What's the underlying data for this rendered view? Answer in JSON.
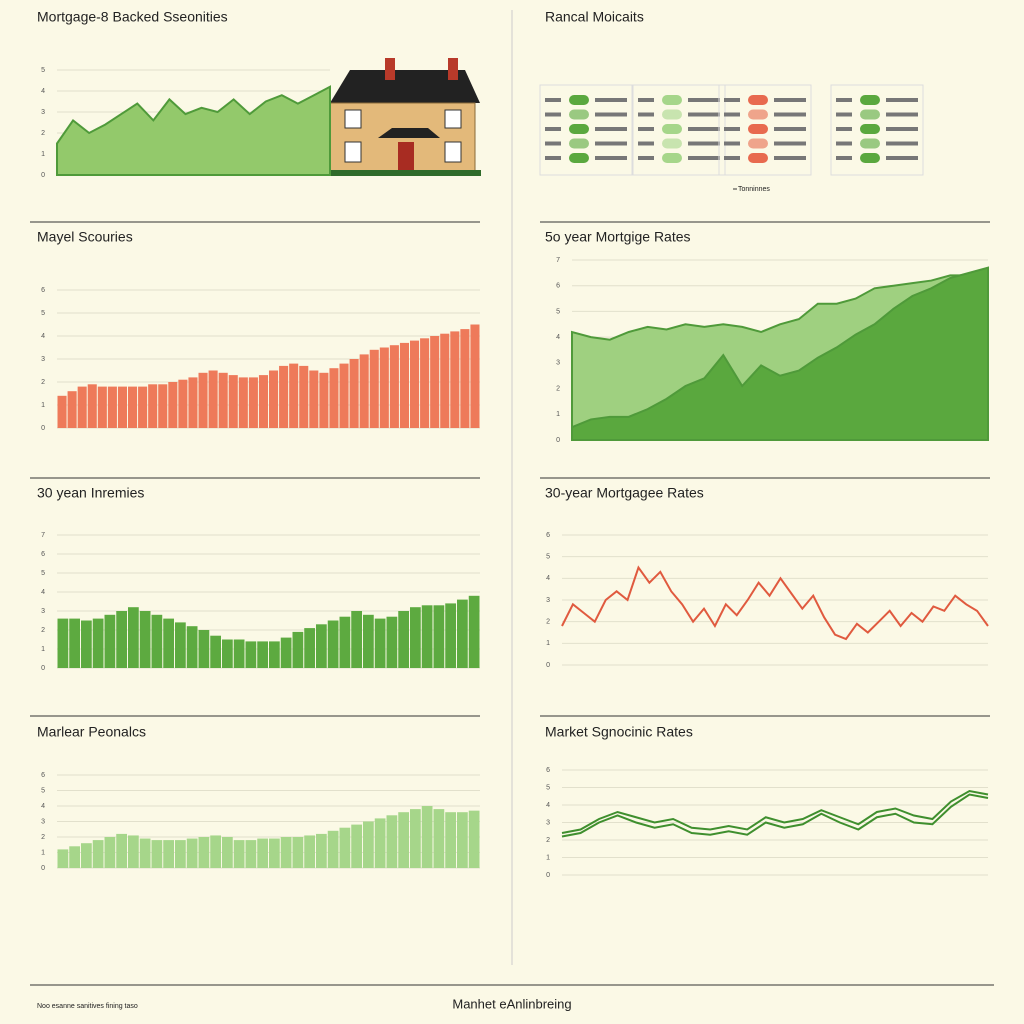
{
  "chart_data": [
    {
      "type": "area",
      "title": "Mortgage-8 Backed Sseonities",
      "ylim": [
        0,
        5
      ],
      "yticks": [
        0,
        1,
        2,
        3,
        4,
        5
      ],
      "series": [
        {
          "color": "#93c96b",
          "values": [
            1.5,
            2.6,
            2.0,
            2.4,
            2.9,
            3.4,
            2.6,
            3.6,
            2.9,
            3.2,
            3.0,
            3.6,
            2.9,
            3.5,
            3.8,
            3.4,
            3.8,
            4.2
          ]
        }
      ]
    },
    {
      "type": "bar",
      "title": "Mayel Scouries",
      "ylim": [
        0,
        6
      ],
      "yticks": [
        0,
        1,
        2,
        3,
        4,
        5,
        6
      ],
      "series": [
        {
          "color": "#ee7a5a",
          "values": [
            1.4,
            1.6,
            1.8,
            1.9,
            1.8,
            1.8,
            1.8,
            1.8,
            1.8,
            1.9,
            1.9,
            2.0,
            2.1,
            2.2,
            2.4,
            2.5,
            2.4,
            2.3,
            2.2,
            2.2,
            2.3,
            2.5,
            2.7,
            2.8,
            2.7,
            2.5,
            2.4,
            2.6,
            2.8,
            3.0,
            3.2,
            3.4,
            3.5,
            3.6,
            3.7,
            3.8,
            3.9,
            4.0,
            4.1,
            4.2,
            4.3,
            4.5
          ]
        }
      ]
    },
    {
      "type": "area",
      "title": "5o year Mortgige Rates",
      "ylim": [
        0,
        7
      ],
      "yticks": [
        0,
        1,
        2,
        3,
        4,
        5,
        6,
        7
      ],
      "series": [
        {
          "color": "#9fd080",
          "values": [
            4.2,
            4.0,
            3.9,
            4.2,
            4.4,
            4.3,
            4.5,
            4.4,
            4.5,
            4.4,
            4.2,
            4.5,
            4.7,
            5.3,
            5.3,
            5.5,
            5.9,
            6.0,
            6.1,
            6.2,
            6.4,
            6.4,
            6.3
          ]
        },
        {
          "color": "#5aa83e",
          "values": [
            0.5,
            0.8,
            0.9,
            0.9,
            1.2,
            1.6,
            2.1,
            2.4,
            3.3,
            2.1,
            2.9,
            2.5,
            2.7,
            3.2,
            3.6,
            4.1,
            4.5,
            5.1,
            5.6,
            5.9,
            6.3,
            6.5,
            6.7
          ]
        }
      ]
    },
    {
      "type": "bar",
      "title": "30 yean Inremies",
      "ylim": [
        0,
        7
      ],
      "yticks": [
        0,
        1,
        2,
        3,
        4,
        5,
        6,
        7
      ],
      "series": [
        {
          "color": "#5daa40",
          "values": [
            2.6,
            2.6,
            2.5,
            2.6,
            2.8,
            3.0,
            3.2,
            3.0,
            2.8,
            2.6,
            2.4,
            2.2,
            2.0,
            1.7,
            1.5,
            1.5,
            1.4,
            1.4,
            1.4,
            1.6,
            1.9,
            2.1,
            2.3,
            2.5,
            2.7,
            3.0,
            2.8,
            2.6,
            2.7,
            3.0,
            3.2,
            3.3,
            3.3,
            3.4,
            3.6,
            3.8
          ]
        }
      ]
    },
    {
      "type": "line",
      "title": "30-year Mortgagee Rates",
      "ylim": [
        0,
        6
      ],
      "yticks": [
        0,
        1,
        2,
        3,
        4,
        5,
        6
      ],
      "series": [
        {
          "color": "#e05a3f",
          "values": [
            1.8,
            2.8,
            2.4,
            2.0,
            3.0,
            3.4,
            3.0,
            4.5,
            3.8,
            4.3,
            3.4,
            2.8,
            2.0,
            2.6,
            1.8,
            2.8,
            2.3,
            3.0,
            3.8,
            3.2,
            4.0,
            3.3,
            2.6,
            3.2,
            2.2,
            1.4,
            1.2,
            1.9,
            1.5,
            2.0,
            2.5,
            1.8,
            2.4,
            2.0,
            2.7,
            2.5,
            3.2,
            2.8,
            2.5,
            1.8
          ]
        }
      ]
    },
    {
      "type": "bar",
      "title": "Marlear Peonalcs",
      "ylim": [
        0,
        6
      ],
      "yticks": [
        0,
        1,
        2,
        3,
        4,
        5,
        6
      ],
      "series": [
        {
          "color": "#a6d68a",
          "values": [
            1.2,
            1.4,
            1.6,
            1.8,
            2.0,
            2.2,
            2.1,
            1.9,
            1.8,
            1.8,
            1.8,
            1.9,
            2.0,
            2.1,
            2.0,
            1.8,
            1.8,
            1.9,
            1.9,
            2.0,
            2.0,
            2.1,
            2.2,
            2.4,
            2.6,
            2.8,
            3.0,
            3.2,
            3.4,
            3.6,
            3.8,
            4.0,
            3.8,
            3.6,
            3.6,
            3.7
          ]
        }
      ]
    },
    {
      "type": "line",
      "title": "Market Sgnocinic Rates",
      "ylim": [
        0,
        6
      ],
      "yticks": [
        0,
        1,
        2,
        3,
        4,
        5,
        6
      ],
      "series": [
        {
          "color": "#3f8f2e",
          "values": [
            2.4,
            2.6,
            3.2,
            3.6,
            3.3,
            3.0,
            3.2,
            2.7,
            2.6,
            2.8,
            2.6,
            3.3,
            3.0,
            3.2,
            3.7,
            3.3,
            2.9,
            3.6,
            3.8,
            3.4,
            3.2,
            4.2,
            4.8,
            4.6
          ]
        },
        {
          "color": "#3f8f2e",
          "values": [
            2.2,
            2.4,
            3.0,
            3.4,
            3.0,
            2.7,
            2.9,
            2.4,
            2.3,
            2.5,
            2.3,
            3.0,
            2.7,
            2.9,
            3.5,
            3.0,
            2.6,
            3.3,
            3.5,
            3.0,
            2.9,
            3.9,
            4.6,
            4.4
          ]
        }
      ]
    }
  ],
  "status_panel": {
    "title": "Rancal Moicaits",
    "legend": "Tonninnes"
  },
  "footer": "Manhet eAnlinbreing",
  "footer_note": "Noo esanne sanitives fining taso"
}
